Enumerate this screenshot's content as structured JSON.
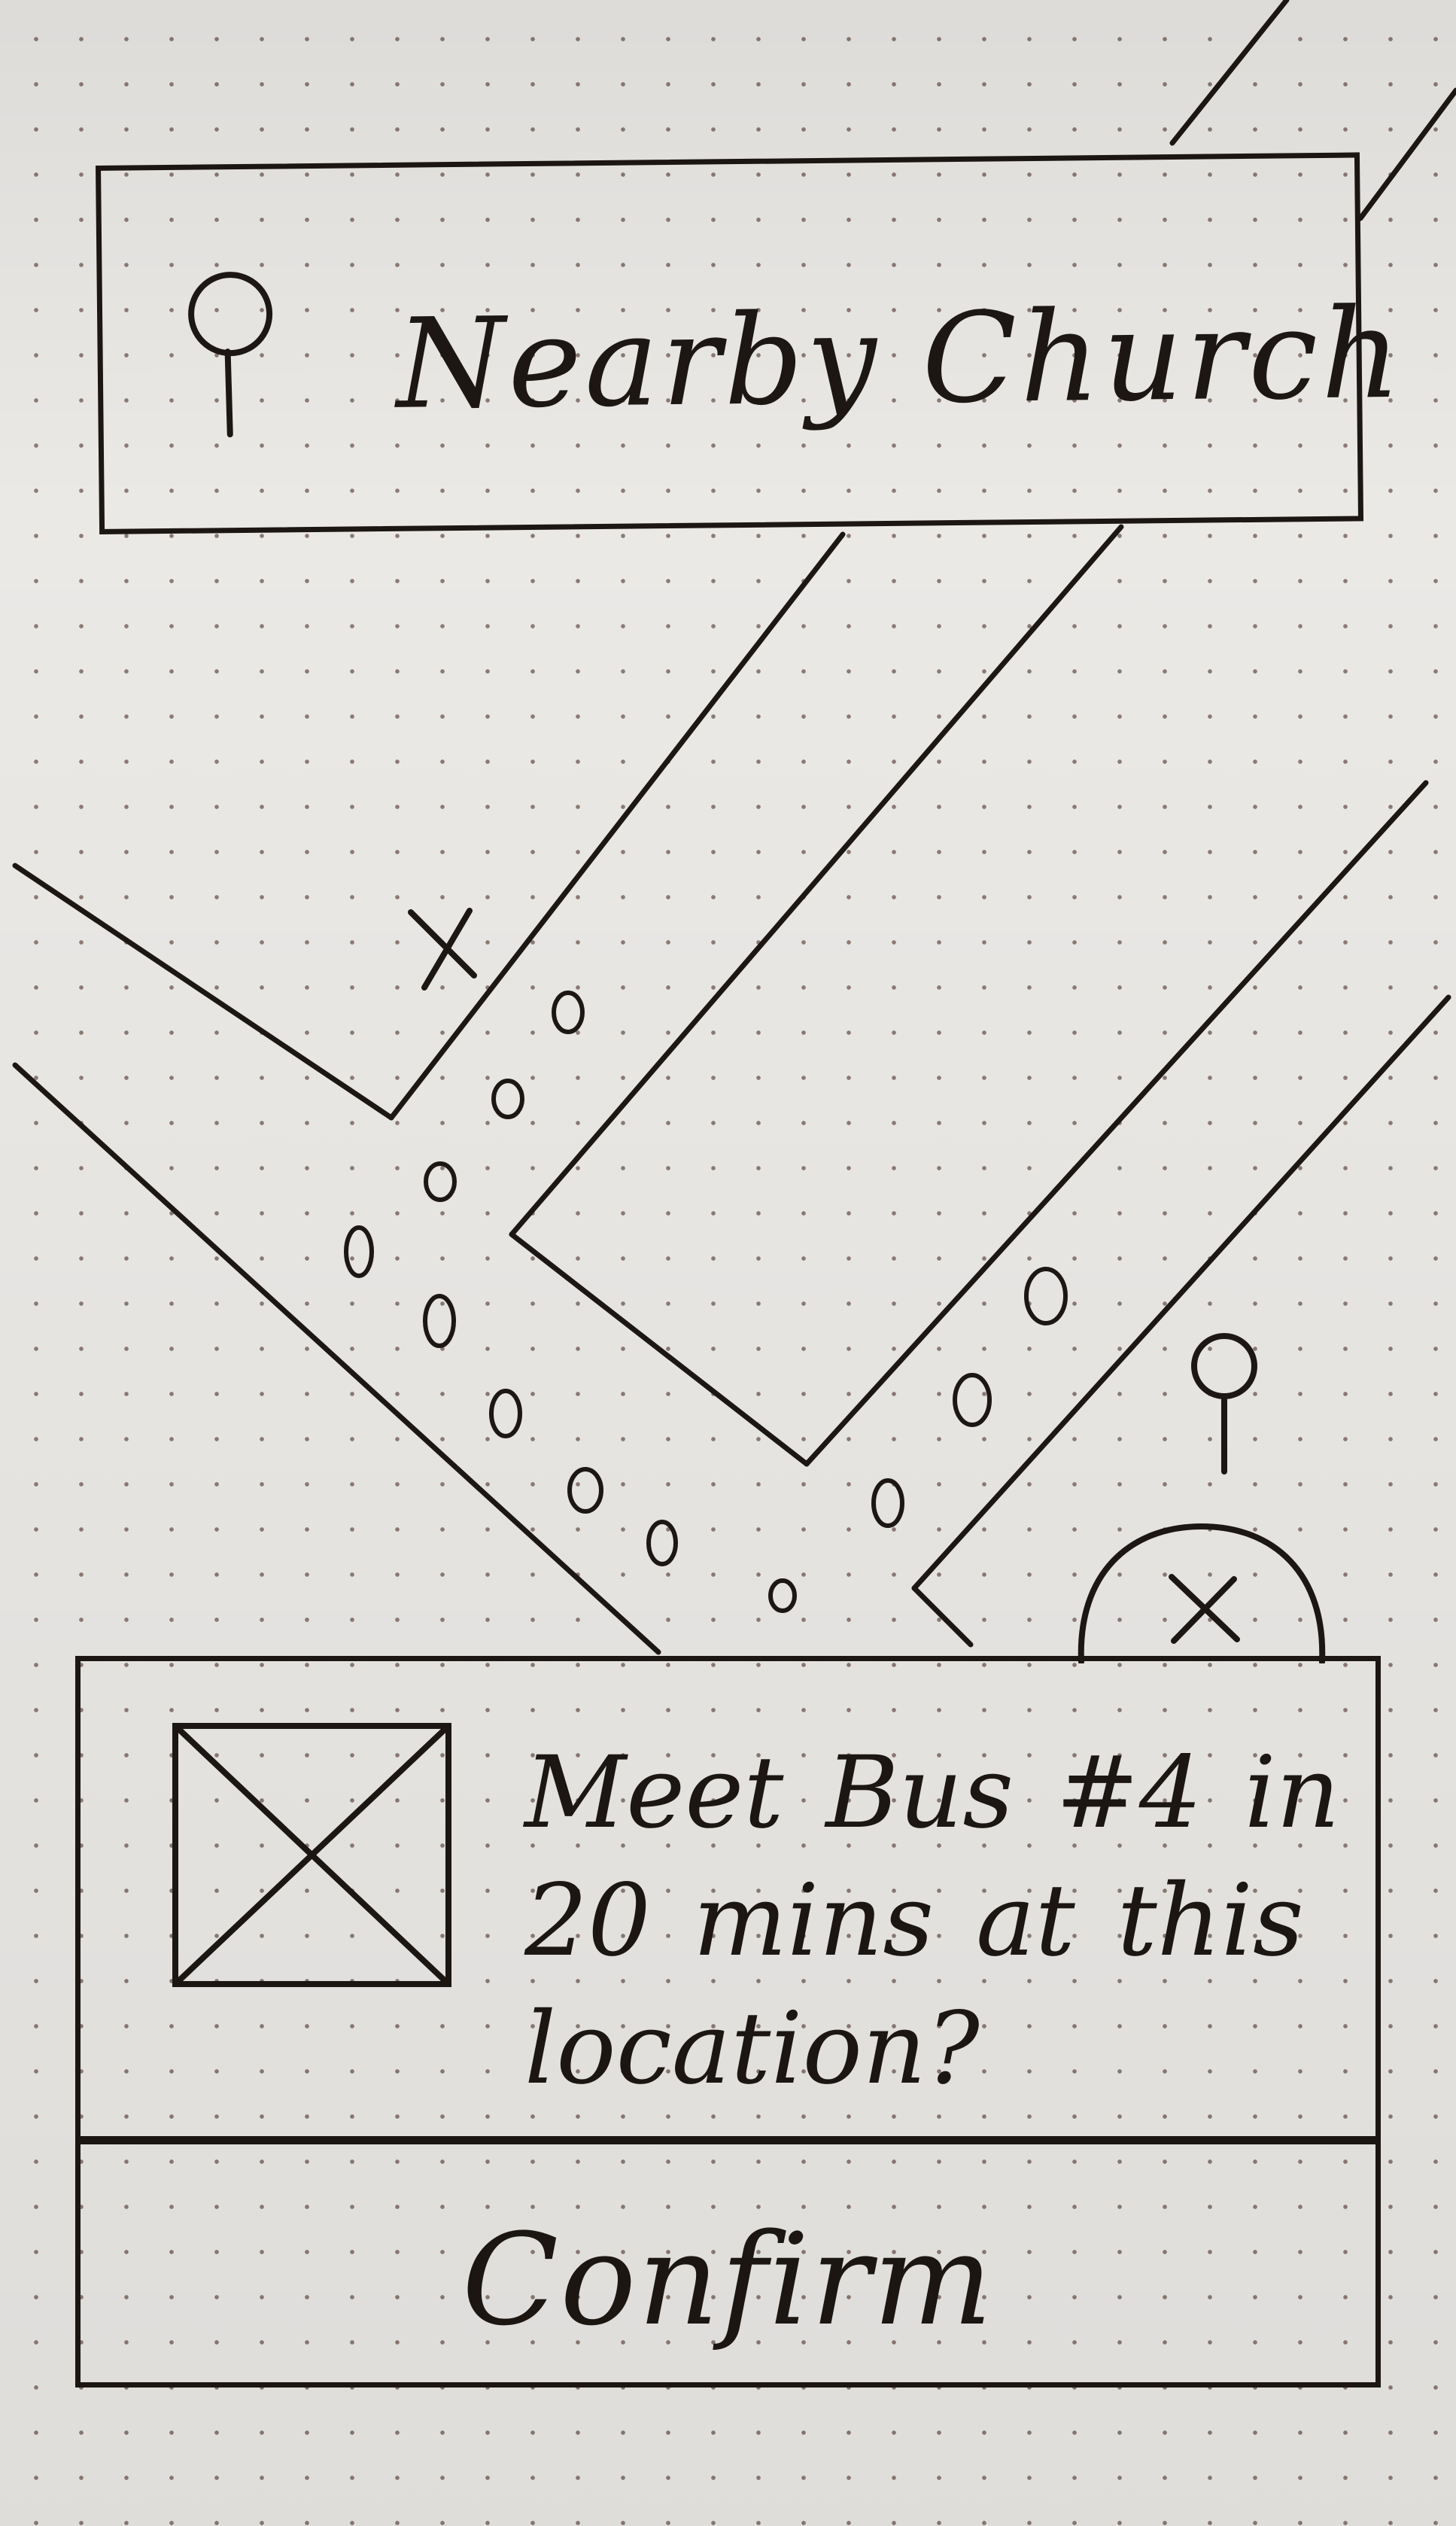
{
  "search": {
    "title": "Nearby Church"
  },
  "trip_card": {
    "message": "Meet Bus #4 in 20 mins at this location?"
  },
  "actions": {
    "confirm_label": "Confirm"
  },
  "icons": {
    "search_pin": "location-pin-icon",
    "thumbnail": "image-placeholder-icon",
    "destination_pin": "location-pin-icon",
    "close": "close-icon",
    "origin": "x-mark-icon"
  },
  "colors": {
    "ink": "#1d1714",
    "paper": "#ebe9e6",
    "dot_grid": "#8b7b74"
  }
}
